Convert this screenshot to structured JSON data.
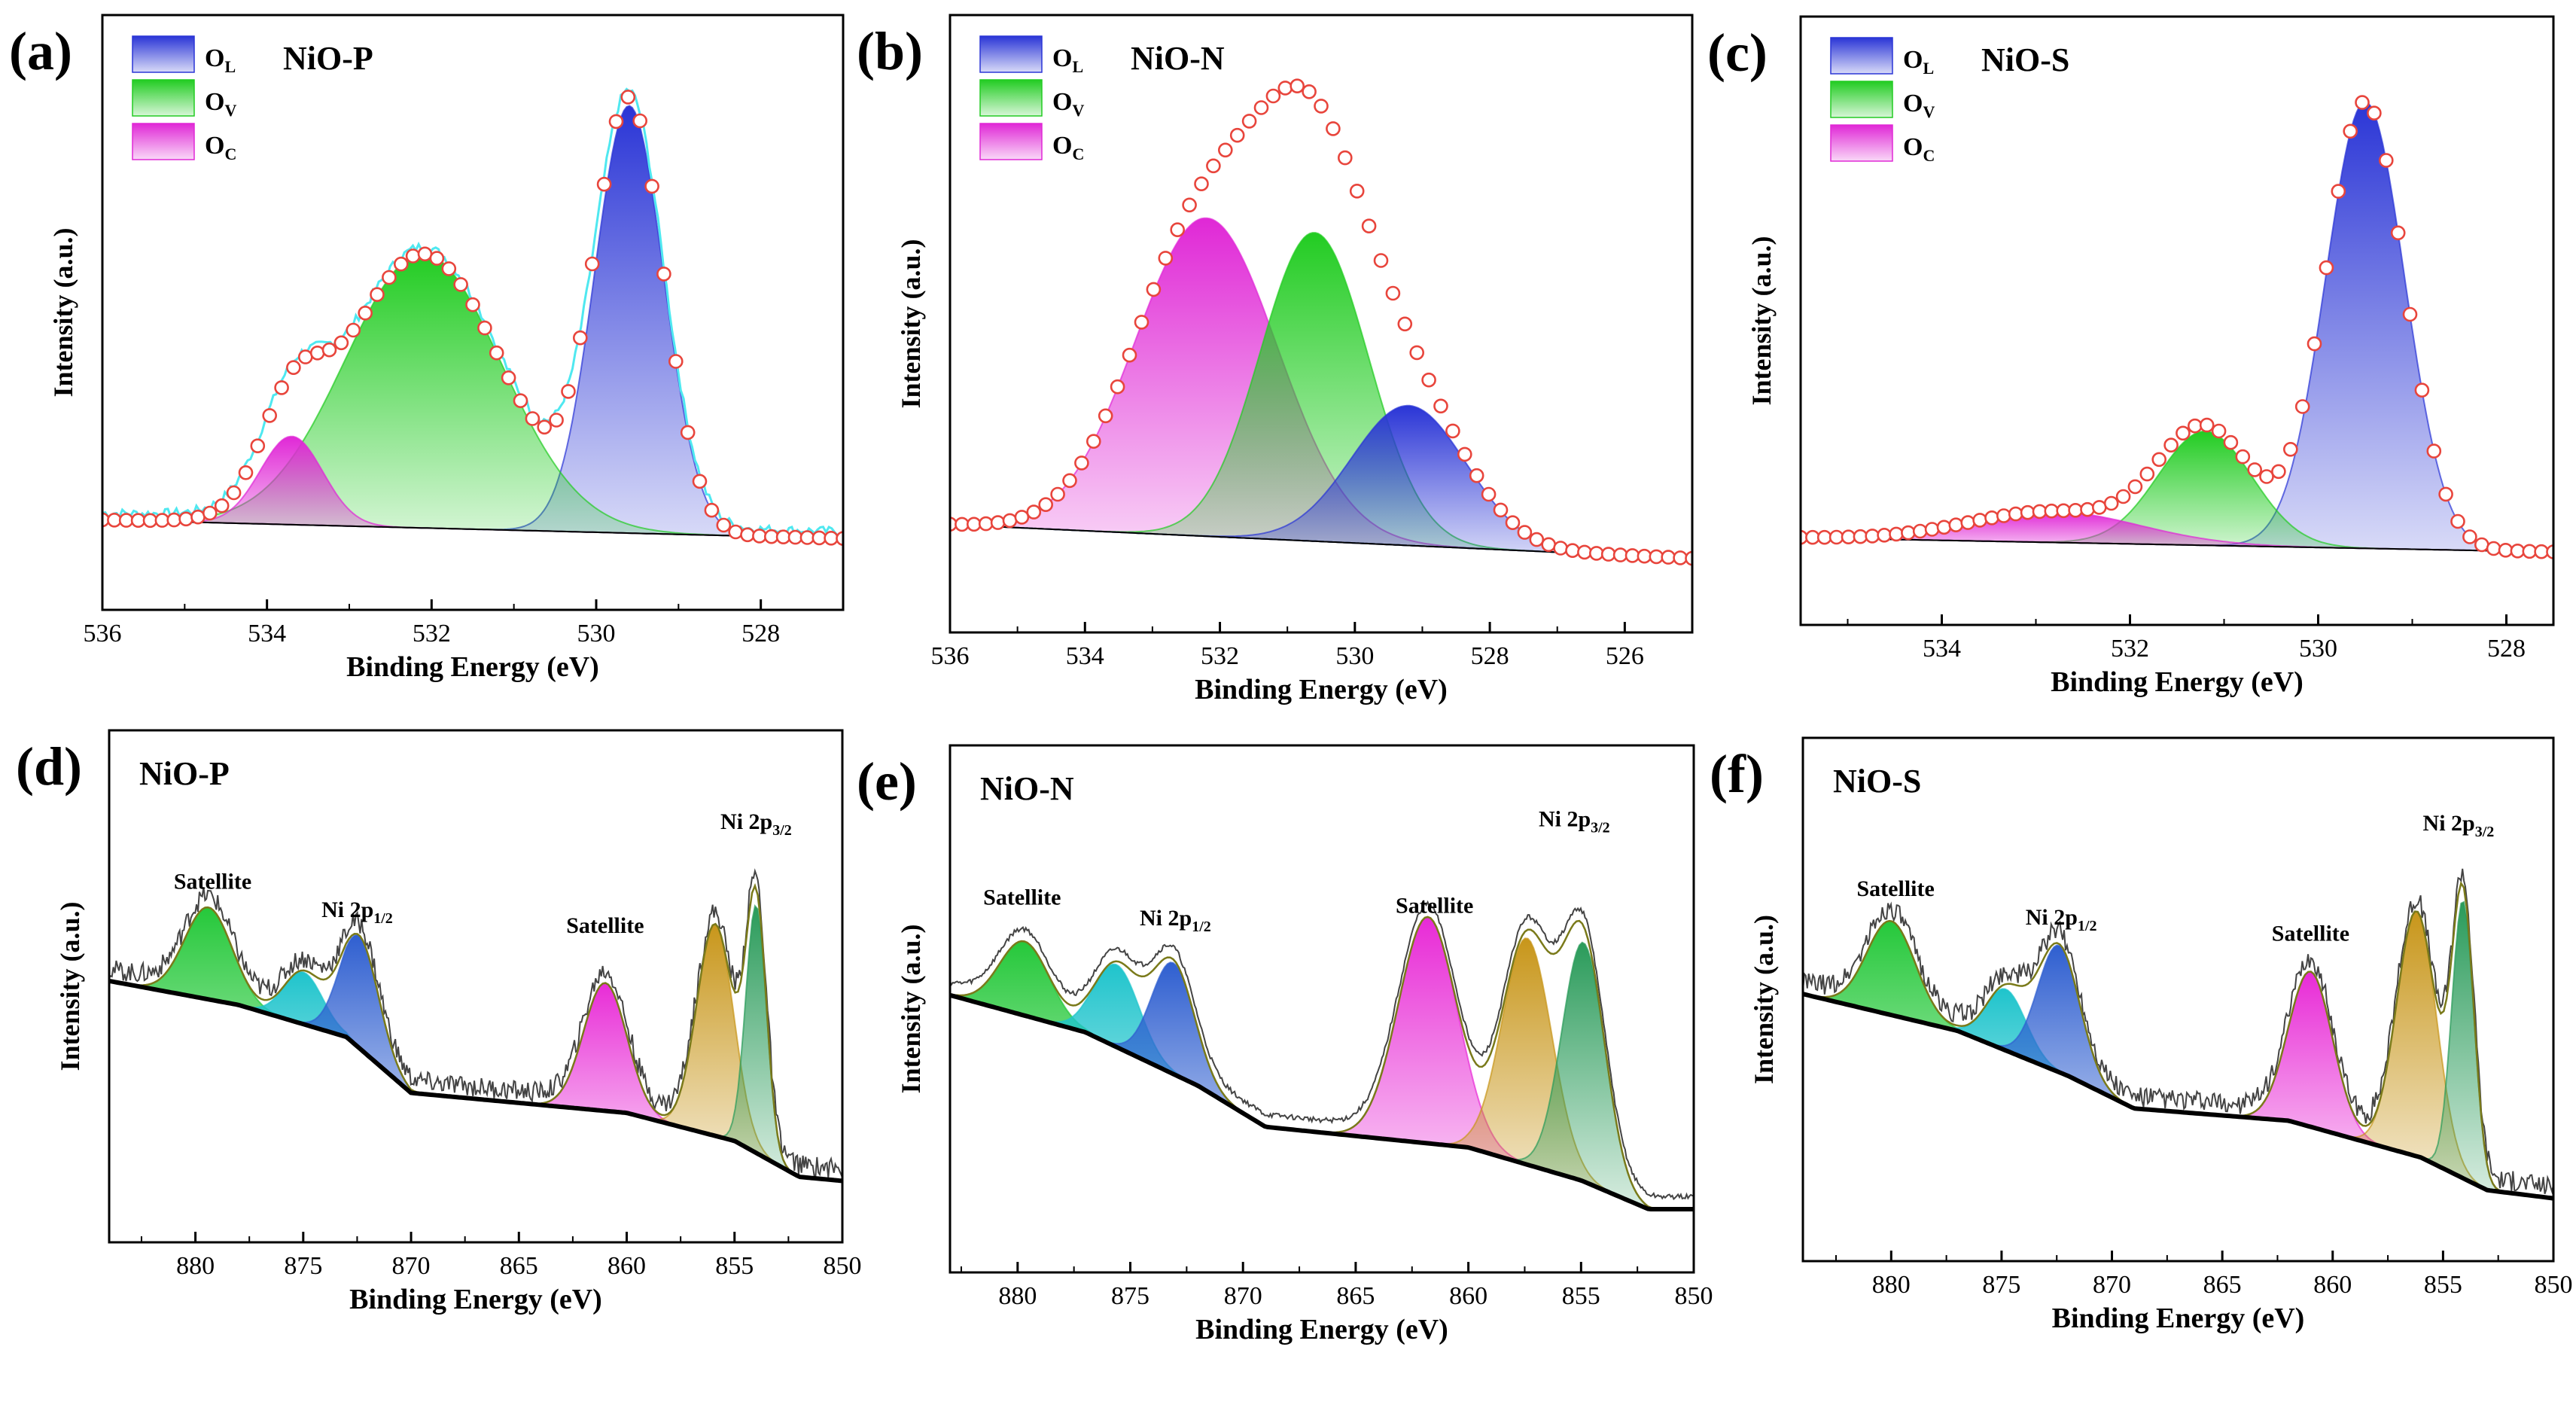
{
  "colors": {
    "OL": "#2a35d6",
    "OV": "#22cc22",
    "OC": "#e028d6",
    "sat_green": "#25c83a",
    "cyan": "#1fc4cc",
    "blue": "#2f5fd0",
    "magenta": "#e82ad6",
    "gold": "#c8961a",
    "teal": "#2a9b5a",
    "marker": "#e8453c",
    "envelope": "#7a7a1a",
    "raw": "#444444",
    "cyan_raw": "#4fe8f0"
  },
  "chart_data": [
    {
      "type": "area",
      "panel": "(a)",
      "title": "NiO-P",
      "xlabel": "Binding Energy (eV)",
      "ylabel": "Intensity (a.u.)",
      "xlim": [
        536,
        527
      ],
      "ylim": [
        0,
        1.05
      ],
      "xticks": [
        "536",
        "534",
        "532",
        "530",
        "528"
      ],
      "xtick_values": [
        536,
        534,
        532,
        530,
        528
      ],
      "baseline": [
        [
          536,
          0.04
        ],
        [
          527,
          0.0
        ]
      ],
      "legend": [
        {
          "sym": "O",
          "sub": "L",
          "key": "OL"
        },
        {
          "sym": "O",
          "sub": "V",
          "key": "OV"
        },
        {
          "sym": "O",
          "sub": "C",
          "key": "OC"
        }
      ],
      "series": [
        {
          "name": "OL",
          "center": 529.6,
          "amp": 0.92,
          "width": 0.42,
          "color": "OL"
        },
        {
          "name": "OV",
          "center": 532.1,
          "amp": 0.59,
          "width": 0.95,
          "color": "OV"
        },
        {
          "name": "OC",
          "center": 533.7,
          "amp": 0.19,
          "width": 0.38,
          "color": "OC"
        }
      ],
      "fit_markers": true,
      "raw_cyan": true
    },
    {
      "type": "area",
      "panel": "(b)",
      "title": "NiO-N",
      "xlabel": "Binding Energy (eV)",
      "ylabel": "Intensity (a.u.)",
      "xlim": [
        536,
        525
      ],
      "ylim": [
        0,
        1.05
      ],
      "xticks": [
        "536",
        "534",
        "532",
        "530",
        "528",
        "526"
      ],
      "xtick_values": [
        536,
        534,
        532,
        530,
        528,
        526
      ],
      "baseline": [
        [
          536,
          0.07
        ],
        [
          525,
          0.0
        ]
      ],
      "legend": [
        {
          "sym": "O",
          "sub": "L",
          "key": "OL"
        },
        {
          "sym": "O",
          "sub": "V",
          "key": "OV"
        },
        {
          "sym": "O",
          "sub": "C",
          "key": "OC"
        }
      ],
      "series": [
        {
          "name": "OC",
          "center": 532.2,
          "amp": 0.66,
          "width": 1.05,
          "color": "OC"
        },
        {
          "name": "OV",
          "center": 530.6,
          "amp": 0.64,
          "width": 0.8,
          "color": "OV"
        },
        {
          "name": "OL",
          "center": 529.2,
          "amp": 0.29,
          "width": 0.85,
          "color": "OL"
        }
      ],
      "fit_markers": true,
      "raw_cyan": false
    },
    {
      "type": "area",
      "panel": "(c)",
      "title": "NiO-S",
      "xlabel": "Binding Energy (eV)",
      "ylabel": "Intensity (a.u.)",
      "xlim": [
        535.5,
        527.5
      ],
      "ylim": [
        0,
        1.05
      ],
      "xticks": [
        "534",
        "532",
        "530",
        "528"
      ],
      "xtick_values": [
        534,
        532,
        530,
        528
      ],
      "baseline": [
        [
          535.5,
          0.03
        ],
        [
          527.5,
          0.0
        ]
      ],
      "legend": [
        {
          "sym": "O",
          "sub": "L",
          "key": "OL"
        },
        {
          "sym": "O",
          "sub": "V",
          "key": "OV"
        },
        {
          "sym": "O",
          "sub": "C",
          "key": "OC"
        }
      ],
      "series": [
        {
          "name": "OL",
          "center": 529.5,
          "amp": 0.94,
          "width": 0.42,
          "color": "OL"
        },
        {
          "name": "OV",
          "center": 531.2,
          "amp": 0.24,
          "width": 0.5,
          "color": "OV"
        },
        {
          "name": "OC",
          "center": 532.8,
          "amp": 0.065,
          "width": 0.9,
          "color": "OC"
        }
      ],
      "fit_markers": true,
      "raw_cyan": false
    },
    {
      "type": "area",
      "panel": "(d)",
      "title": "NiO-P",
      "xlabel": "Binding Energy (eV)",
      "ylabel": "Intensity (a.u.)",
      "xlim": [
        884,
        850
      ],
      "ylim": [
        0,
        1.05
      ],
      "xticks": [
        "880",
        "875",
        "870",
        "865",
        "860",
        "855",
        "850"
      ],
      "xtick_values": [
        880,
        875,
        870,
        865,
        860,
        855,
        850
      ],
      "baseline": [
        [
          884,
          0.5
        ],
        [
          878,
          0.44
        ],
        [
          873,
          0.36
        ],
        [
          870,
          0.22
        ],
        [
          866,
          0.2
        ],
        [
          860,
          0.17
        ],
        [
          855,
          0.1
        ],
        [
          852,
          0.01
        ],
        [
          850,
          0.0
        ]
      ],
      "annotations": [
        {
          "text": "Satellite",
          "x": 879.2,
          "y": 0.73
        },
        {
          "text": "Ni 2p",
          "sub": "1/2",
          "x": 872.5,
          "y": 0.66
        },
        {
          "text": "Satellite",
          "x": 861,
          "y": 0.62
        },
        {
          "text": "Ni 2p",
          "sub": "3/2",
          "x": 854,
          "y": 0.88
        }
      ],
      "series": [
        {
          "name": "Satellite (880)",
          "center": 879.4,
          "amp": 0.23,
          "width": 1.1,
          "color": "sat_green"
        },
        {
          "name": "Ni 2p1/2 shoulder",
          "center": 875.0,
          "amp": 0.13,
          "width": 0.9,
          "color": "cyan"
        },
        {
          "name": "Ni 2p1/2",
          "center": 872.4,
          "amp": 0.28,
          "width": 0.9,
          "color": "blue"
        },
        {
          "name": "Satellite (861)",
          "center": 861.0,
          "amp": 0.32,
          "width": 1.0,
          "color": "magenta"
        },
        {
          "name": "Ni 2p3/2 shoulder",
          "center": 855.9,
          "amp": 0.53,
          "width": 0.85,
          "color": "gold"
        },
        {
          "name": "Ni 2p3/2",
          "center": 854.0,
          "amp": 0.62,
          "width": 0.48,
          "color": "teal"
        }
      ],
      "fit_markers": false,
      "raw_cyan": false
    },
    {
      "type": "area",
      "panel": "(e)",
      "title": "NiO-N",
      "xlabel": "Binding Energy (eV)",
      "ylabel": "Intensity (a.u.)",
      "xlim": [
        883,
        850
      ],
      "ylim": [
        0,
        1.05
      ],
      "xticks": [
        "880",
        "875",
        "870",
        "865",
        "860",
        "855",
        "850"
      ],
      "xtick_values": [
        880,
        875,
        870,
        865,
        860,
        855,
        850
      ],
      "baseline": [
        [
          883,
          0.52
        ],
        [
          877,
          0.43
        ],
        [
          872,
          0.3
        ],
        [
          869,
          0.2
        ],
        [
          860,
          0.15
        ],
        [
          855,
          0.07
        ],
        [
          852,
          0.0
        ],
        [
          850,
          0.0
        ]
      ],
      "annotations": [
        {
          "text": "Satellite",
          "x": 879.8,
          "y": 0.74
        },
        {
          "text": "Ni 2p",
          "sub": "1/2",
          "x": 873,
          "y": 0.69
        },
        {
          "text": "Satellite",
          "x": 861.5,
          "y": 0.72
        },
        {
          "text": "Ni 2p",
          "sub": "3/2",
          "x": 855.3,
          "y": 0.93
        }
      ],
      "series": [
        {
          "name": "Satellite (880)",
          "center": 879.7,
          "amp": 0.18,
          "width": 1.1,
          "color": "sat_green"
        },
        {
          "name": "Ni 2p1/2 shoulder",
          "center": 875.6,
          "amp": 0.2,
          "width": 1.0,
          "color": "cyan"
        },
        {
          "name": "Ni 2p1/2",
          "center": 873.1,
          "amp": 0.27,
          "width": 0.95,
          "color": "blue"
        },
        {
          "name": "Satellite (862)",
          "center": 861.8,
          "amp": 0.55,
          "width": 1.3,
          "color": "magenta"
        },
        {
          "name": "Ni 2p3/2 shoulder",
          "center": 857.4,
          "amp": 0.55,
          "width": 1.1,
          "color": "gold"
        },
        {
          "name": "Ni 2p3/2",
          "center": 854.9,
          "amp": 0.58,
          "width": 0.95,
          "color": "teal"
        }
      ],
      "fit_markers": false,
      "raw_cyan": false
    },
    {
      "type": "area",
      "panel": "(f)",
      "title": "NiO-S",
      "xlabel": "Binding Energy (eV)",
      "ylabel": "Intensity (a.u.)",
      "xlim": [
        884,
        850
      ],
      "ylim": [
        0,
        1.05
      ],
      "xticks": [
        "880",
        "875",
        "870",
        "865",
        "860",
        "855",
        "850"
      ],
      "xtick_values": [
        880,
        875,
        870,
        865,
        860,
        855,
        850
      ],
      "baseline": [
        [
          884,
          0.5
        ],
        [
          877,
          0.41
        ],
        [
          872,
          0.3
        ],
        [
          869,
          0.22
        ],
        [
          862,
          0.19
        ],
        [
          856,
          0.1
        ],
        [
          853,
          0.02
        ],
        [
          850,
          0.0
        ]
      ],
      "annotations": [
        {
          "text": "Satellite",
          "x": 879.8,
          "y": 0.74
        },
        {
          "text": "Ni 2p",
          "sub": "1/2",
          "x": 872.3,
          "y": 0.67
        },
        {
          "text": "Satellite",
          "x": 861,
          "y": 0.63
        },
        {
          "text": "Ni 2p",
          "sub": "3/2",
          "x": 854.3,
          "y": 0.9
        }
      ],
      "series": [
        {
          "name": "Satellite (880)",
          "center": 880.0,
          "amp": 0.23,
          "width": 1.1,
          "color": "sat_green"
        },
        {
          "name": "Ni 2p1/2 shoulder",
          "center": 874.8,
          "amp": 0.15,
          "width": 0.9,
          "color": "cyan"
        },
        {
          "name": "Ni 2p1/2",
          "center": 872.4,
          "amp": 0.31,
          "width": 0.95,
          "color": "blue"
        },
        {
          "name": "Satellite (861)",
          "center": 861.0,
          "amp": 0.38,
          "width": 1.0,
          "color": "magenta"
        },
        {
          "name": "Ni 2p3/2 shoulder",
          "center": 856.2,
          "amp": 0.6,
          "width": 0.9,
          "color": "gold"
        },
        {
          "name": "Ni 2p3/2",
          "center": 854.1,
          "amp": 0.68,
          "width": 0.5,
          "color": "teal"
        }
      ],
      "fit_markers": false,
      "raw_cyan": false
    }
  ]
}
